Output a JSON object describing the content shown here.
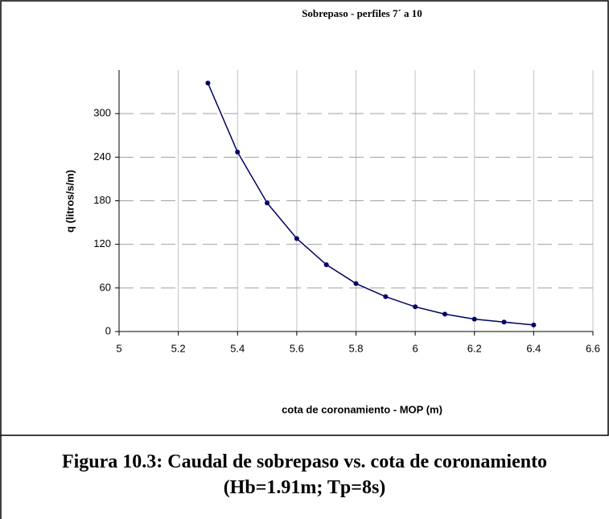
{
  "chart_data": {
    "type": "line",
    "title": "Sobrepaso - perfiles 7´ a 10",
    "x_label": "cota de coronamiento - MOP (m)",
    "y_label": "q (litros/s/m)",
    "x": [
      5.3,
      5.4,
      5.5,
      5.6,
      5.7,
      5.8,
      5.9,
      6.0,
      6.1,
      6.2,
      6.3,
      6.4
    ],
    "series": [
      {
        "color": "#000066",
        "values": [
          342,
          247,
          177,
          128,
          92,
          66,
          48,
          34,
          24,
          17,
          13,
          9
        ]
      }
    ],
    "xlim": [
      5,
      6.6
    ],
    "xticks": [
      5,
      5.2,
      5.4,
      5.6,
      5.8,
      6,
      6.2,
      6.4,
      6.6
    ],
    "ylim": [
      0,
      360
    ],
    "yticks": [
      0,
      60,
      120,
      180,
      240,
      300
    ],
    "grid": true
  },
  "caption": "Figura 10.3: Caudal de sobrepaso vs. cota de coronamiento (Hb=1.91m; Tp=8s)"
}
